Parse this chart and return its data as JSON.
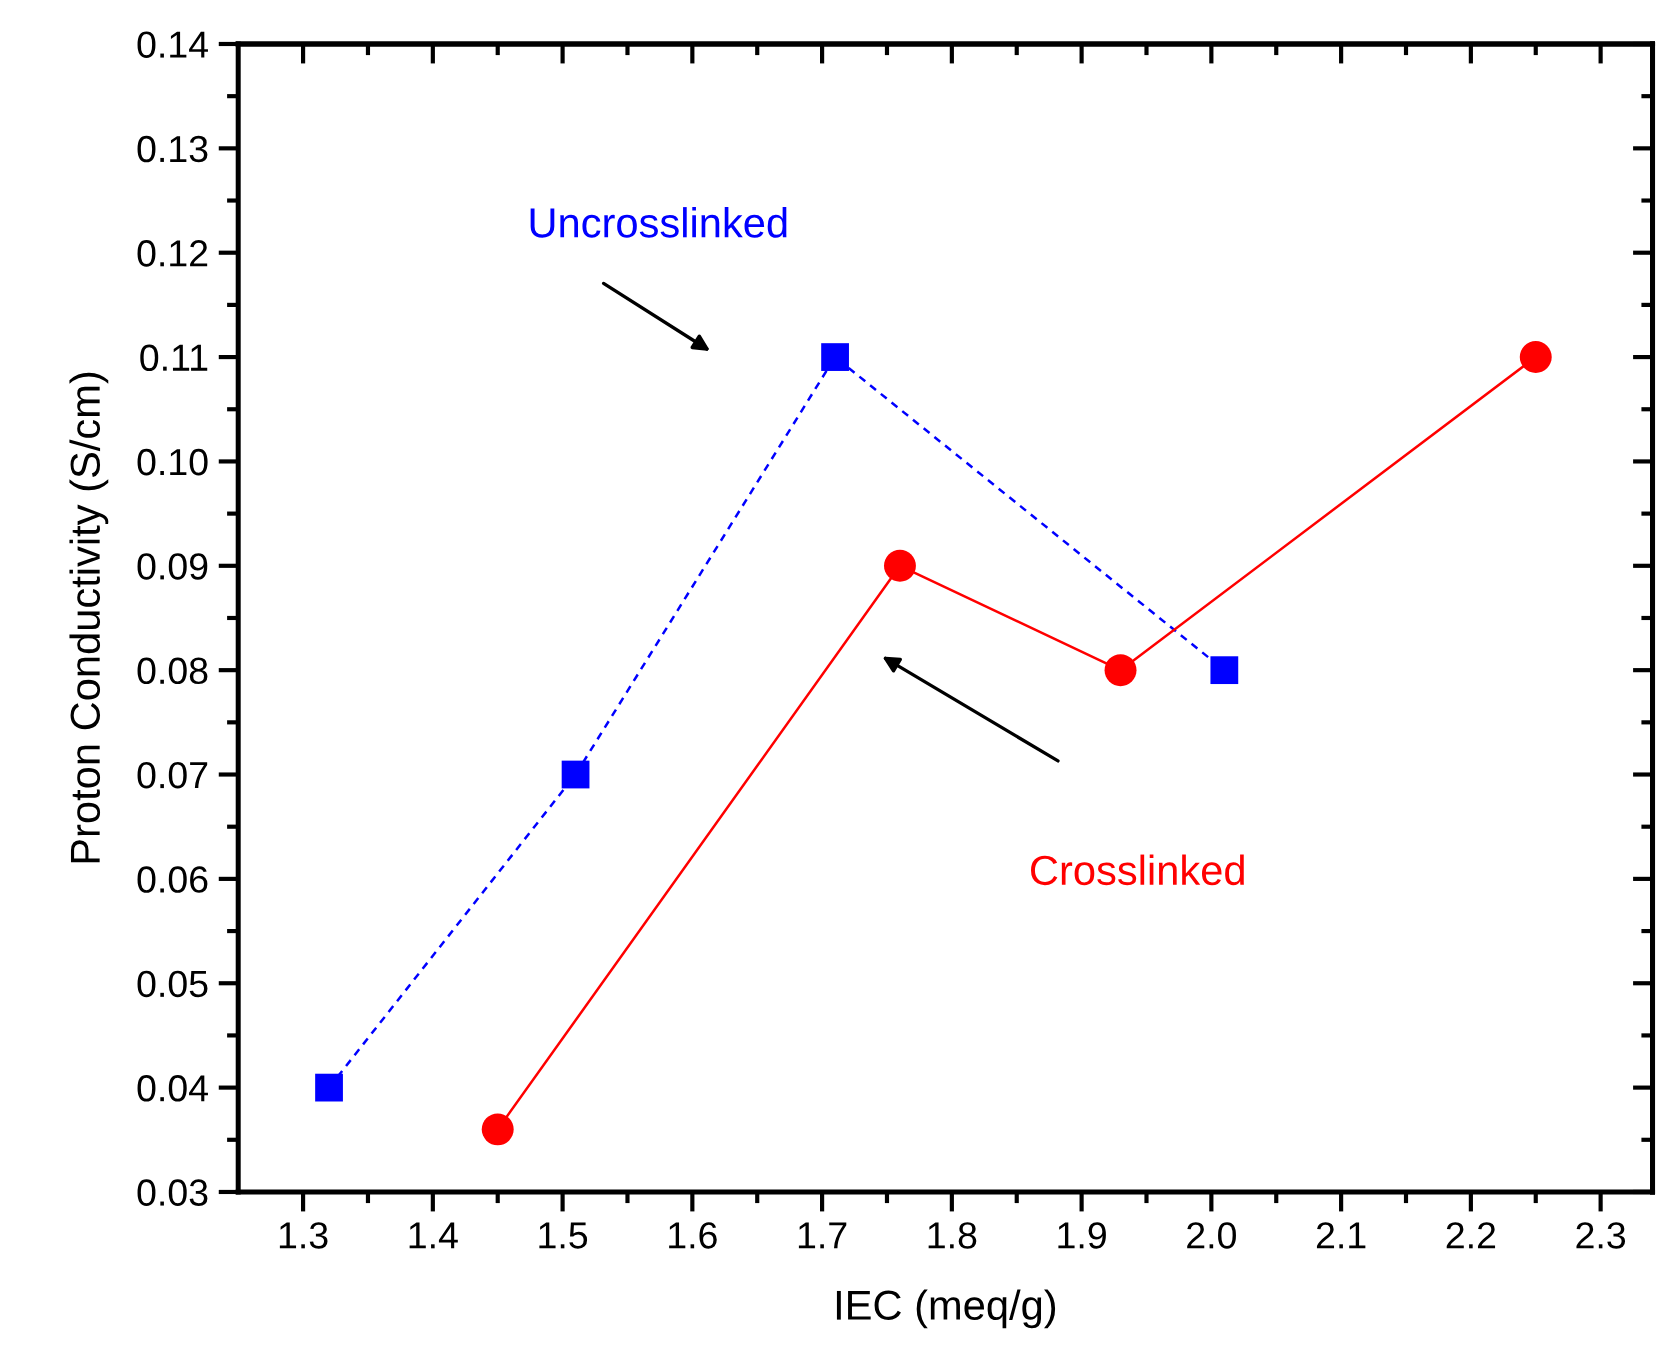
{
  "chart_data": {
    "type": "line",
    "xlabel": "IEC (meq/g)",
    "ylabel": "Proton Conductivity (S/cm)",
    "xlim": [
      1.25,
      2.34
    ],
    "xticks": [
      1.3,
      1.4,
      1.5,
      1.6,
      1.7,
      1.8,
      1.9,
      {
        "value": 2,
        "label": "2.0"
      },
      2.1,
      2.2,
      2.3
    ],
    "ylim": [
      0.03,
      0.14
    ],
    "yticks": [
      0.03,
      0.04,
      0.05,
      0.06,
      0.07,
      0.08,
      0.09,
      {
        "value": 0.1,
        "label": "0.10"
      },
      0.11,
      0.12,
      0.13,
      0.14
    ],
    "grid": false,
    "legend": false,
    "series": [
      {
        "color": "#0000ff",
        "marker": "square",
        "line_style": "dashed",
        "x": [
          1.32,
          1.51,
          1.71,
          2.01
        ],
        "values": [
          0.04,
          0.07,
          0.11,
          0.08
        ]
      },
      {
        "color": "#ff0000",
        "marker": "circle",
        "line_style": "solid",
        "x": [
          1.45,
          1.76,
          1.93,
          2.25
        ],
        "values": [
          0.036,
          0.09,
          0.08,
          0.11
        ]
      }
    ],
    "annotations": [
      "Uncrosslinked",
      "Crosslinked"
    ]
  }
}
